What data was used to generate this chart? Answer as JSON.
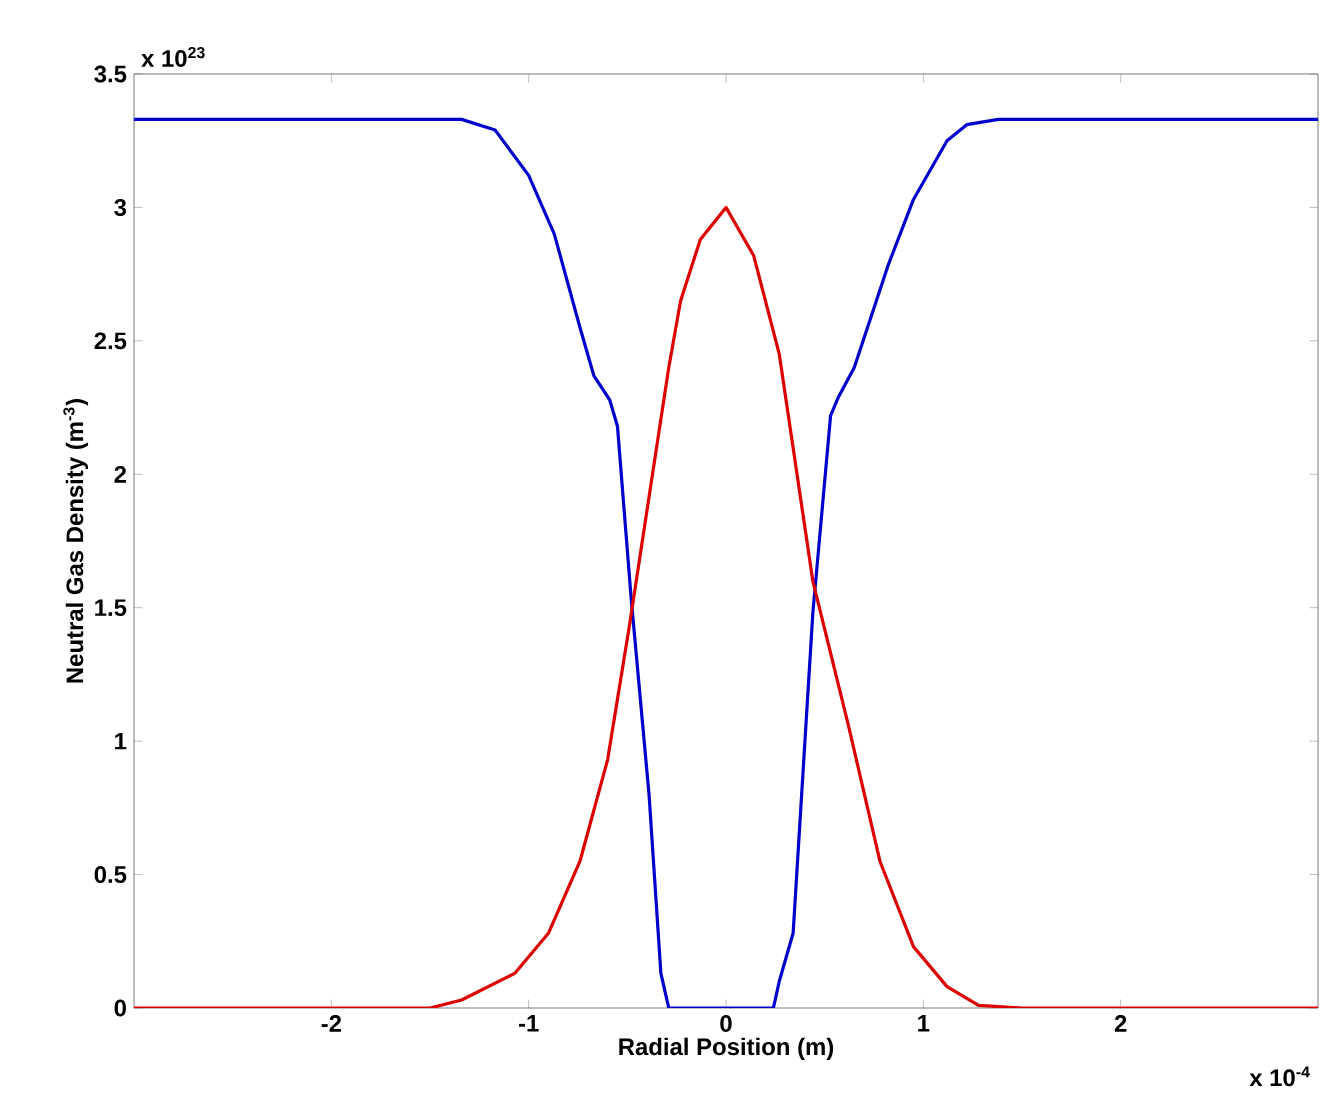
{
  "chart_data": {
    "type": "line",
    "xlabel": "Radial Position (m)",
    "ylabel": "Neutral Gas Density (m$^{-3}$)",
    "annotations": [
      "x 10$^{23}$",
      "x 10$^{-4}$"
    ],
    "xlim": [
      -3,
      3
    ],
    "ylim": [
      0,
      3.5
    ],
    "xticks": [
      -2,
      -1,
      0,
      1,
      2
    ],
    "yticks": [
      0,
      0.5,
      1,
      1.5,
      2,
      2.5,
      3,
      3.5
    ],
    "series": [
      {
        "color": "#0000cc",
        "x": [
          -3,
          -2.5,
          -2,
          -1.6,
          -1.34,
          -1.17,
          -1.0,
          -0.87,
          -0.74,
          -0.67,
          -0.59,
          -0.55,
          -0.52,
          -0.48,
          -0.39,
          -0.33,
          -0.29,
          0,
          0.24,
          0.27,
          0.34,
          0.44,
          0.53,
          0.57,
          0.65,
          0.82,
          0.95,
          1.12,
          1.22,
          1.38,
          1.6,
          2,
          2.5,
          3
        ],
        "values": [
          3.33,
          3.33,
          3.33,
          3.33,
          3.33,
          3.29,
          3.12,
          2.9,
          2.55,
          2.37,
          2.28,
          2.18,
          1.9,
          1.53,
          0.8,
          0.13,
          0,
          0,
          0,
          0.1,
          0.28,
          1.48,
          2.22,
          2.29,
          2.4,
          2.78,
          3.03,
          3.25,
          3.31,
          3.33,
          3.33,
          3.33,
          3.33,
          3.33
        ]
      },
      {
        "color": "#dd0000",
        "x": [
          -3,
          -2,
          -1.5,
          -1.34,
          -1.07,
          -0.9,
          -0.74,
          -0.6,
          -0.49,
          -0.29,
          -0.23,
          -0.13,
          0,
          0.14,
          0.27,
          0.44,
          0.62,
          0.78,
          0.95,
          1.12,
          1.28,
          1.5,
          2,
          3
        ],
        "values": [
          0,
          0,
          0,
          0.03,
          0.13,
          0.28,
          0.55,
          0.93,
          1.43,
          2.4,
          2.65,
          2.88,
          3.0,
          2.82,
          2.45,
          1.6,
          1.06,
          0.55,
          0.23,
          0.08,
          0.01,
          0,
          0,
          0
        ]
      }
    ]
  }
}
